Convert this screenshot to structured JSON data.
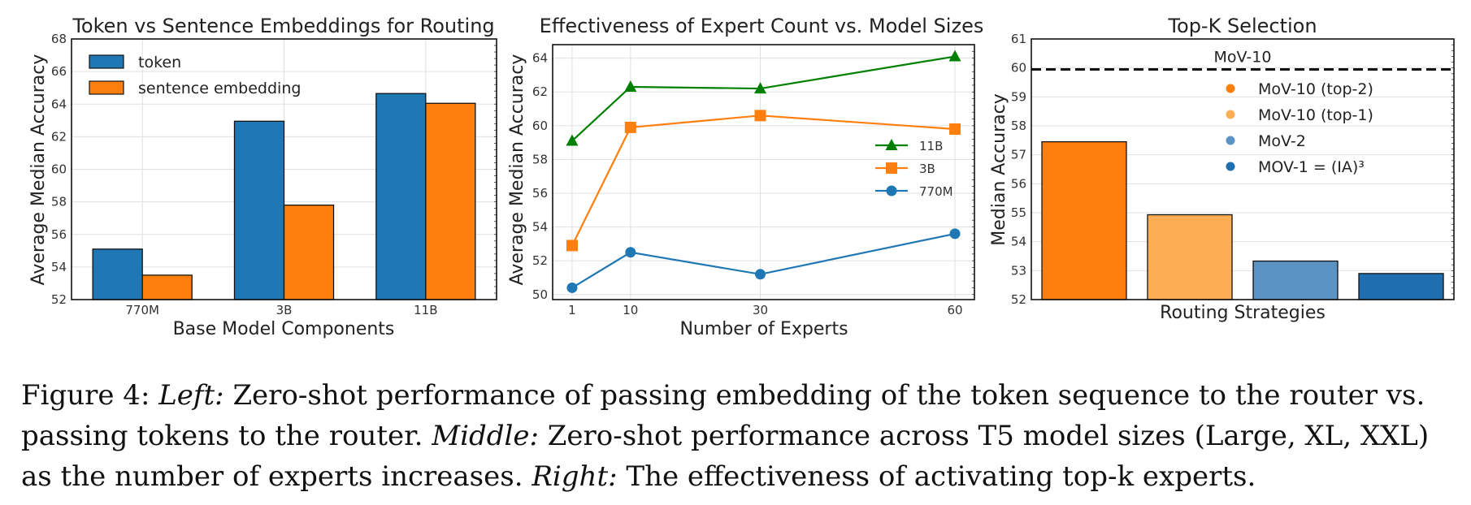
{
  "chart_data": [
    {
      "type": "bar",
      "title": "Token vs Sentence Embeddings for Routing",
      "xlabel": "Base Model Components",
      "ylabel": "Average Median Accuracy",
      "categories": [
        "770M",
        "3B",
        "11B"
      ],
      "series": [
        {
          "name": "token",
          "color": "#1f77b4",
          "values": [
            55.1,
            62.95,
            64.65
          ]
        },
        {
          "name": "sentence embedding",
          "color": "#ff7f0e",
          "values": [
            53.5,
            57.8,
            64.05
          ]
        }
      ],
      "ylim": [
        52,
        68
      ],
      "yticks": [
        52,
        54,
        56,
        58,
        60,
        62,
        64,
        66,
        68
      ],
      "grid": true,
      "legend": "top-left"
    },
    {
      "type": "line",
      "title": "Effectiveness of Expert Count vs. Model Sizes",
      "xlabel": "Number of Experts",
      "ylabel": "Average Median Accuracy",
      "x": [
        1,
        10,
        30,
        60
      ],
      "xticks": [
        1,
        10,
        30,
        60
      ],
      "series": [
        {
          "name": "11B",
          "color": "#008000",
          "marker": "triangle",
          "values": [
            59.1,
            62.3,
            62.2,
            64.1
          ]
        },
        {
          "name": "3B",
          "color": "#ff7f0e",
          "marker": "square",
          "values": [
            52.9,
            59.9,
            60.6,
            59.8
          ]
        },
        {
          "name": "770M",
          "color": "#1f77b4",
          "marker": "circle",
          "values": [
            50.4,
            52.5,
            51.2,
            53.6
          ]
        }
      ],
      "xlim": [
        -2,
        63
      ],
      "ylim": [
        49.7,
        64.8
      ],
      "yticks": [
        50,
        52,
        54,
        56,
        58,
        60,
        62,
        64
      ],
      "grid": true,
      "legend": "center-right"
    },
    {
      "type": "bar",
      "title": "Top-K Selection",
      "xlabel": "Routing Strategies",
      "ylabel": "Median Accuracy",
      "categories": [
        "MoV-10 (top-2)",
        "MoV-10 (top-1)",
        "MoV-2",
        "MOV-1 = (IA)³"
      ],
      "values": [
        57.45,
        54.93,
        53.33,
        52.9
      ],
      "colors": [
        "#ff7f0e",
        "#fdae55",
        "#5b93c5",
        "#1f6fb0"
      ],
      "reference_line": {
        "label": "MoV-10",
        "value": 59.95,
        "style": "dashed"
      },
      "ylim": [
        52,
        61
      ],
      "yticks": [
        52,
        53,
        54,
        55,
        56,
        57,
        58,
        59,
        60,
        61
      ],
      "grid": true,
      "legend": "top-right"
    }
  ],
  "caption": {
    "figure_label": "Figure 4:",
    "left_label": "Left:",
    "left_text": "Zero-shot performance of passing embedding of the token sequence to the router vs. passing tokens to the router.",
    "middle_label": "Middle:",
    "middle_text": "Zero-shot performance across T5 model sizes (Large, XL, XXL) as the number of experts increases.",
    "right_label": "Right:",
    "right_text": "The effectiveness of activating top-k experts."
  }
}
